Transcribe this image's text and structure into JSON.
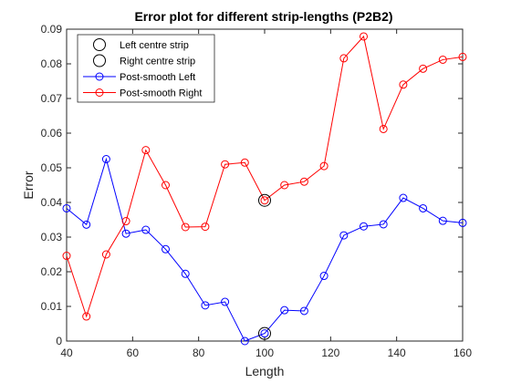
{
  "chart_data": {
    "type": "line",
    "title": "Error plot for different strip-lengths (P2B2)",
    "xlabel": "Length",
    "ylabel": "Error",
    "xlim": [
      40,
      160
    ],
    "ylim": [
      0,
      0.09
    ],
    "xticks": [
      40,
      60,
      80,
      100,
      120,
      140,
      160
    ],
    "yticks": [
      0,
      0.01,
      0.02,
      0.03,
      0.04,
      0.05,
      0.06,
      0.07,
      0.08,
      0.09
    ],
    "xtick_labels": [
      "40",
      "60",
      "80",
      "100",
      "120",
      "140",
      "160"
    ],
    "ytick_labels": [
      "0",
      "0.01",
      "0.02",
      "0.03",
      "0.04",
      "0.05",
      "0.06",
      "0.07",
      "0.08",
      "0.09"
    ],
    "grid": false,
    "legend_placement": "top-left",
    "series": [
      {
        "name": "Left centre strip",
        "style": "marker-only",
        "marker": "circle",
        "color": "#000000",
        "x": [
          100
        ],
        "y": [
          0.0022
        ]
      },
      {
        "name": "Right centre strip",
        "style": "marker-only",
        "marker": "circle",
        "color": "#000000",
        "x": [
          100
        ],
        "y": [
          0.0406
        ]
      },
      {
        "name": "Post-smooth Left",
        "style": "line-marker",
        "marker": "circle",
        "color": "#0000ff",
        "x": [
          40,
          46,
          52,
          58,
          64,
          70,
          76,
          82,
          88,
          94,
          100,
          106,
          112,
          118,
          124,
          130,
          136,
          142,
          148,
          154,
          160
        ],
        "y": [
          0.0383,
          0.0336,
          0.0525,
          0.031,
          0.0321,
          0.0265,
          0.0194,
          0.0103,
          0.0113,
          0.0,
          0.0022,
          0.0089,
          0.0087,
          0.0188,
          0.0305,
          0.0331,
          0.0337,
          0.0413,
          0.0383,
          0.0347,
          0.0341
        ]
      },
      {
        "name": "Post-smooth Right",
        "style": "line-marker",
        "marker": "circle",
        "color": "#ff0000",
        "x": [
          40,
          46,
          52,
          58,
          64,
          70,
          76,
          82,
          88,
          94,
          100,
          106,
          112,
          118,
          124,
          130,
          136,
          142,
          148,
          154,
          160
        ],
        "y": [
          0.0246,
          0.0071,
          0.025,
          0.0346,
          0.0551,
          0.045,
          0.0329,
          0.033,
          0.051,
          0.0515,
          0.0406,
          0.045,
          0.046,
          0.0505,
          0.0816,
          0.0879,
          0.0612,
          0.074,
          0.0786,
          0.0812,
          0.082
        ]
      }
    ]
  }
}
